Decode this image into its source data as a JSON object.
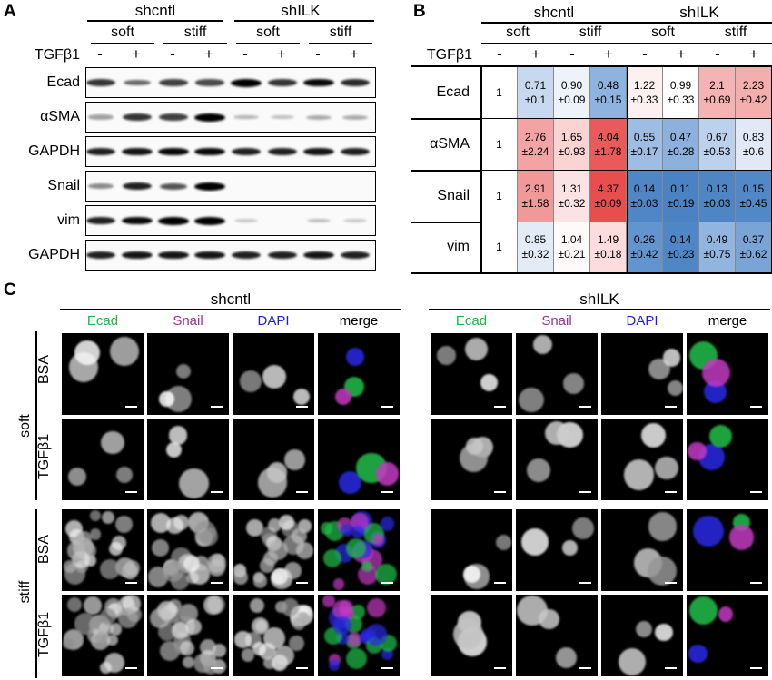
{
  "panels": {
    "A": "A",
    "B": "B",
    "C": "C"
  },
  "western": {
    "groups": [
      "shcntl",
      "shILK"
    ],
    "stiffness": [
      "soft",
      "stiff",
      "soft",
      "stiff"
    ],
    "treatment_label": "TGFβ1",
    "treatment_signs": [
      "-",
      "+",
      "-",
      "+",
      "-",
      "+",
      "-",
      "+"
    ],
    "blots": [
      {
        "name": "Ecad",
        "intensity": [
          0.75,
          0.5,
          0.7,
          0.65,
          1.0,
          0.75,
          0.95,
          0.8
        ]
      },
      {
        "name": "αSMA",
        "intensity": [
          0.25,
          0.75,
          0.7,
          1.0,
          0.15,
          0.1,
          0.2,
          0.2
        ]
      },
      {
        "name": "GAPDH",
        "intensity": [
          0.85,
          0.9,
          0.95,
          0.95,
          0.85,
          0.85,
          0.9,
          0.85
        ]
      },
      {
        "name": "Snail",
        "intensity": [
          0.35,
          0.85,
          0.6,
          1.0,
          0.0,
          0.0,
          0.0,
          0.0
        ]
      },
      {
        "name": "vim",
        "intensity": [
          0.85,
          0.95,
          1.0,
          1.0,
          0.05,
          0.0,
          0.1,
          0.05
        ]
      },
      {
        "name": "GAPDH",
        "intensity": [
          0.85,
          0.9,
          0.9,
          0.9,
          0.85,
          0.85,
          0.9,
          0.85
        ]
      }
    ]
  },
  "quant_table": {
    "groups": [
      "shcntl",
      "shILK"
    ],
    "stiffness": [
      "soft",
      "stiff",
      "soft",
      "stiff"
    ],
    "treatment_label": "TGFβ1",
    "treatment_signs": [
      "-",
      "+",
      "-",
      "+",
      "-",
      "+",
      "-",
      "+"
    ],
    "rows": [
      {
        "name": "Ecad",
        "cells": [
          {
            "v": "1",
            "sd": "",
            "c": "#ffffff"
          },
          {
            "v": "0.71",
            "sd": "±0.1",
            "c": "#c8d9ef"
          },
          {
            "v": "0.90",
            "sd": "±0.09",
            "c": "#eef2f9"
          },
          {
            "v": "0.48",
            "sd": "±0.15",
            "c": "#8fb3df"
          },
          {
            "v": "1.22",
            "sd": "±0.33",
            "c": "#fdf0f0"
          },
          {
            "v": "0.99",
            "sd": "±0.33",
            "c": "#ffffff"
          },
          {
            "v": "2.1",
            "sd": "±0.69",
            "c": "#f6b3b3"
          },
          {
            "v": "2.23",
            "sd": "±0.42",
            "c": "#f5aeae"
          }
        ]
      },
      {
        "name": "αSMA",
        "cells": [
          {
            "v": "1",
            "sd": "",
            "c": "#ffffff"
          },
          {
            "v": "2.76",
            "sd": "±2.24",
            "c": "#f3a3a3"
          },
          {
            "v": "1.65",
            "sd": "±0.93",
            "c": "#fad3d3"
          },
          {
            "v": "4.04",
            "sd": "±1.78",
            "c": "#eb5a5a"
          },
          {
            "v": "0.55",
            "sd": "±0.17",
            "c": "#9dbde3"
          },
          {
            "v": "0.47",
            "sd": "±0.28",
            "c": "#8db1dd"
          },
          {
            "v": "0.67",
            "sd": "±0.53",
            "c": "#bcd1ec"
          },
          {
            "v": "0.83",
            "sd": "±0.6",
            "c": "#e0e9f5"
          }
        ]
      },
      {
        "name": "Snail",
        "cells": [
          {
            "v": "1",
            "sd": "",
            "c": "#ffffff"
          },
          {
            "v": "2.91",
            "sd": "±1.58",
            "c": "#f19999"
          },
          {
            "v": "1.31",
            "sd": "±0.32",
            "c": "#fbe3e3"
          },
          {
            "v": "4.37",
            "sd": "±0.09",
            "c": "#e94e4e"
          },
          {
            "v": "0.14",
            "sd": "±0.03",
            "c": "#4f86c6"
          },
          {
            "v": "0.11",
            "sd": "±0.19",
            "c": "#4a82c4"
          },
          {
            "v": "0.13",
            "sd": "±0.03",
            "c": "#4d85c5"
          },
          {
            "v": "0.15",
            "sd": "±0.45",
            "c": "#5188c7"
          }
        ]
      },
      {
        "name": "vim",
        "cells": [
          {
            "v": "1",
            "sd": "",
            "c": "#ffffff"
          },
          {
            "v": "0.85",
            "sd": "±0.32",
            "c": "#e3ebf6"
          },
          {
            "v": "1.04",
            "sd": "±0.21",
            "c": "#fefafa"
          },
          {
            "v": "1.49",
            "sd": "±0.18",
            "c": "#fcdcdc"
          },
          {
            "v": "0.26",
            "sd": "±0.42",
            "c": "#6494ce"
          },
          {
            "v": "0.14",
            "sd": "±0.23",
            "c": "#4f86c6"
          },
          {
            "v": "0.49",
            "sd": "±0.75",
            "c": "#92b5df"
          },
          {
            "v": "0.37",
            "sd": "±0.62",
            "c": "#7aa4d6"
          }
        ]
      }
    ]
  },
  "microscopy": {
    "groups": [
      "shcntl",
      "shILK"
    ],
    "channels": [
      {
        "name": "Ecad",
        "color": "#22b34a"
      },
      {
        "name": "Snail",
        "color": "#9b2d9b"
      },
      {
        "name": "DAPI",
        "color": "#1f1fd6"
      },
      {
        "name": "merge",
        "color": "#000000"
      }
    ],
    "stiffness_labels": [
      "soft",
      "stiff"
    ],
    "treatment_labels": [
      "BSA",
      "TGFβ1",
      "BSA",
      "TGFβ1"
    ]
  }
}
